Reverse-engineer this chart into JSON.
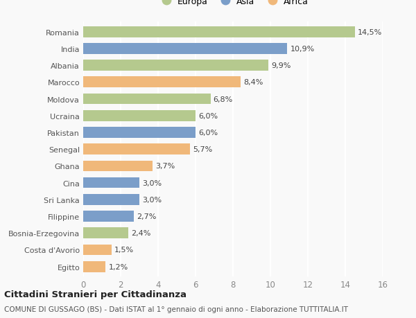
{
  "countries": [
    "Romania",
    "India",
    "Albania",
    "Marocco",
    "Moldova",
    "Ucraina",
    "Pakistan",
    "Senegal",
    "Ghana",
    "Cina",
    "Sri Lanka",
    "Filippine",
    "Bosnia-Erzegovina",
    "Costa d'Avorio",
    "Egitto"
  ],
  "values": [
    14.5,
    10.9,
    9.9,
    8.4,
    6.8,
    6.0,
    6.0,
    5.7,
    3.7,
    3.0,
    3.0,
    2.7,
    2.4,
    1.5,
    1.2
  ],
  "labels": [
    "14,5%",
    "10,9%",
    "9,9%",
    "8,4%",
    "6,8%",
    "6,0%",
    "6,0%",
    "5,7%",
    "3,7%",
    "3,0%",
    "3,0%",
    "2,7%",
    "2,4%",
    "1,5%",
    "1,2%"
  ],
  "continents": [
    "Europa",
    "Asia",
    "Europa",
    "Africa",
    "Europa",
    "Europa",
    "Asia",
    "Africa",
    "Africa",
    "Asia",
    "Asia",
    "Asia",
    "Europa",
    "Africa",
    "Africa"
  ],
  "colors": {
    "Europa": "#b5c98e",
    "Asia": "#7b9ec9",
    "Africa": "#f0b87a"
  },
  "background_color": "#f9f9f9",
  "title1": "Cittadini Stranieri per Cittadinanza",
  "title2": "COMUNE DI GUSSAGO (BS) - Dati ISTAT al 1° gennaio di ogni anno - Elaborazione TUTTITALIA.IT",
  "xlim": [
    0,
    16
  ],
  "xticks": [
    0,
    2,
    4,
    6,
    8,
    10,
    12,
    14,
    16
  ],
  "bar_height": 0.65,
  "label_fontsize": 8.0,
  "ytick_fontsize": 8.0,
  "xtick_fontsize": 8.5,
  "legend_fontsize": 9.0,
  "title1_fontsize": 9.5,
  "title2_fontsize": 7.5,
  "grid_color": "#ffffff",
  "text_color": "#555555",
  "label_color": "#444444"
}
